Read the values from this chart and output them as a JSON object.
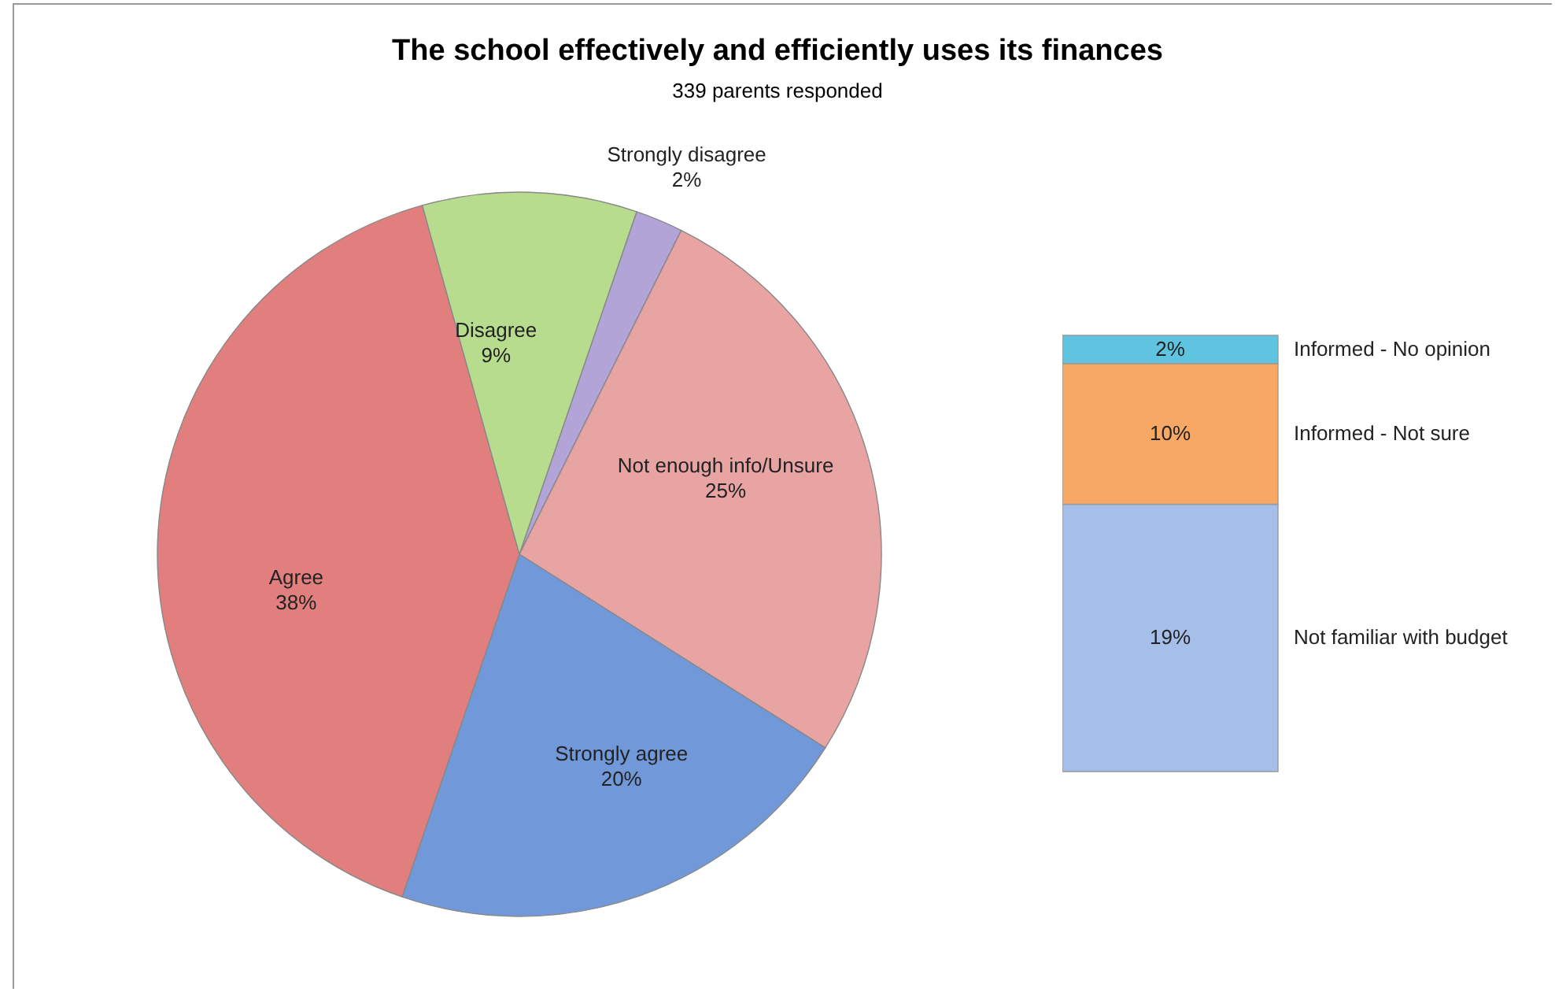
{
  "chart_data": [
    {
      "type": "pie",
      "title": "The school effectively and efficiently uses its finances",
      "subtitle": "339 parents responded",
      "categories": [
        "Strongly disagree",
        "Not enough info/Unsure",
        "Strongly agree",
        "Agree",
        "Disagree"
      ],
      "values": [
        2,
        25,
        20,
        38,
        9
      ],
      "value_labels": [
        "2%",
        "25%",
        "20%",
        "38%",
        "9%"
      ],
      "colors": [
        "#b3a4d8",
        "#e8a3a3",
        "#7199d9",
        "#e07f7d",
        "#b8dc8e"
      ]
    },
    {
      "type": "bar",
      "stacked": true,
      "categories": [
        null
      ],
      "series": [
        {
          "name": "Not familiar with budget",
          "color": "#a6bfe8",
          "values": [
            19
          ],
          "value_labels": [
            "19%"
          ]
        },
        {
          "name": "Informed - Not sure",
          "color": "#f7a865",
          "values": [
            10
          ],
          "value_labels": [
            "10%"
          ]
        },
        {
          "name": "Informed - No opinion",
          "color": "#5fc4e0",
          "values": [
            2
          ],
          "value_labels": [
            "2%"
          ]
        }
      ]
    }
  ]
}
